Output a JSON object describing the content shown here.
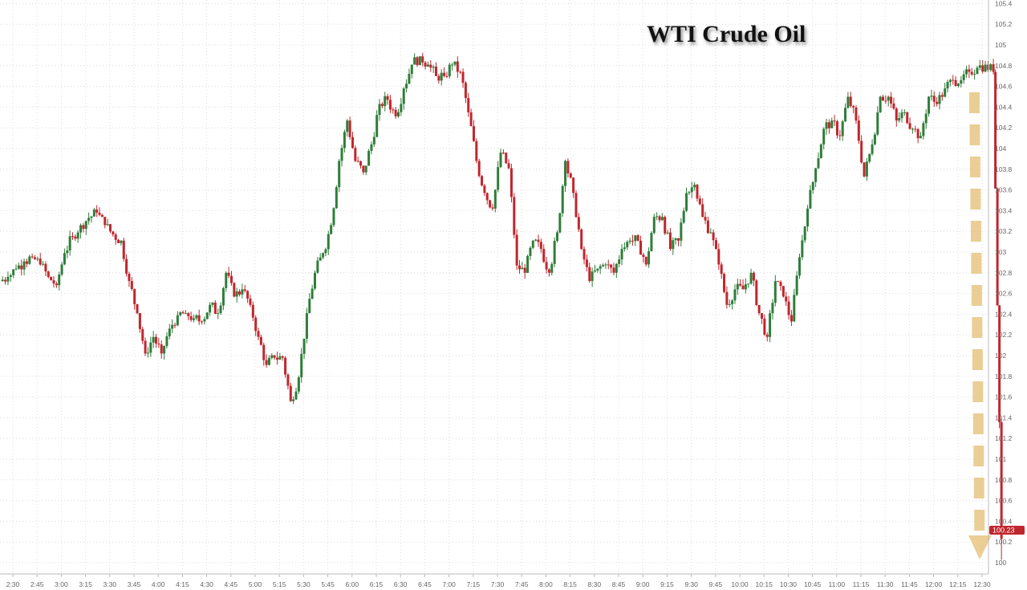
{
  "chart_data": {
    "type": "candlestick",
    "title": "WTI Crude Oil",
    "xlabel": "",
    "ylabel": "",
    "ylim": [
      100,
      105.4
    ],
    "y_ticks": [
      "100",
      "100.2",
      "100.4",
      "100.6",
      "100.8",
      "101",
      "101.2",
      "101.4",
      "101.6",
      "101.8",
      "102",
      "102.2",
      "102.4",
      "102.6",
      "102.8",
      "103",
      "103.2",
      "103.4",
      "103.6",
      "103.8",
      "104",
      "104.2",
      "104.4",
      "104.6",
      "104.8",
      "105",
      "105.2",
      "105.4"
    ],
    "x_ticks": [
      "2:30",
      "2:45",
      "3:00",
      "3:15",
      "3:30",
      "3:45",
      "4:00",
      "4:15",
      "4:30",
      "4:45",
      "5:00",
      "5:15",
      "5:30",
      "5:45",
      "6:00",
      "6:15",
      "6:30",
      "6:45",
      "7:00",
      "7:15",
      "7:30",
      "7:45",
      "8:00",
      "8:15",
      "8:30",
      "8:45",
      "9:00",
      "9:15",
      "9:30",
      "9:45",
      "10:00",
      "10:15",
      "10:30",
      "10:45",
      "11:00",
      "11:15",
      "11:30",
      "11:45",
      "12:00",
      "12:15",
      "12:30"
    ],
    "grid": true,
    "start_time": "2:22",
    "interval_minutes": 5,
    "closes": [
      102.72,
      102.76,
      102.84,
      102.91,
      102.95,
      102.88,
      102.76,
      102.68,
      102.99,
      103.15,
      103.26,
      103.33,
      103.38,
      103.26,
      103.17,
      103.11,
      102.72,
      102.41,
      102.02,
      102.18,
      102.02,
      102.26,
      102.39,
      102.41,
      102.36,
      102.33,
      102.49,
      102.41,
      102.8,
      102.57,
      102.64,
      102.49,
      102.18,
      101.91,
      101.98,
      101.98,
      101.56,
      101.79,
      102.41,
      102.8,
      102.99,
      103.26,
      103.88,
      104.27,
      103.88,
      103.77,
      104.04,
      104.43,
      104.47,
      104.31,
      104.58,
      104.81,
      104.89,
      104.81,
      104.7,
      104.7,
      104.81,
      104.74,
      104.35,
      103.88,
      103.57,
      103.42,
      103.96,
      103.81,
      102.87,
      102.8,
      103.11,
      103.03,
      102.8,
      103.19,
      103.88,
      103.57,
      103.03,
      102.72,
      102.84,
      102.88,
      102.8,
      103.03,
      103.11,
      103.11,
      102.88,
      103.34,
      103.34,
      103.03,
      103.11,
      103.57,
      103.65,
      103.34,
      103.19,
      102.88,
      102.49,
      102.64,
      102.64,
      102.8,
      102.41,
      102.18,
      102.72,
      102.57,
      102.33,
      102.95,
      103.42,
      103.81,
      104.19,
      104.27,
      104.12,
      104.5,
      104.27,
      103.73,
      104.04,
      104.5,
      104.5,
      104.27,
      104.35,
      104.19,
      104.12,
      104.5,
      104.43,
      104.58,
      104.66,
      104.66,
      104.74,
      104.78,
      104.81,
      104.74,
      100.23
    ],
    "last_price_label": "100.23",
    "annotation": "dashed downward arrow",
    "colors": {
      "up": "#2f7d3a",
      "down": "#c0262d",
      "arrow": "#e8c98a",
      "price_tag": "#c0262d",
      "grid": "#dcdcdc"
    }
  }
}
